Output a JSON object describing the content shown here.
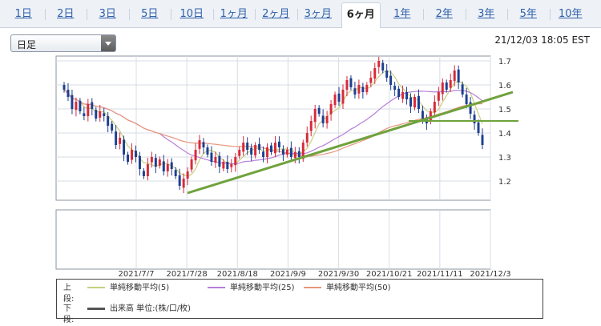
{
  "tabs": [
    {
      "label": "1日"
    },
    {
      "label": "2日"
    },
    {
      "label": "3日"
    },
    {
      "label": "5日"
    },
    {
      "label": "10日"
    },
    {
      "label": "1ヶ月"
    },
    {
      "label": "2ヶ月"
    },
    {
      "label": "3ヶ月"
    },
    {
      "label": "6ヶ月",
      "active": true
    },
    {
      "label": "1年"
    },
    {
      "label": "2年"
    },
    {
      "label": "3年"
    },
    {
      "label": "5年"
    },
    {
      "label": "10年"
    }
  ],
  "period_select": {
    "value": "日足"
  },
  "timestamp": "21/12/03 18:05 EST",
  "chart_data": {
    "type": "candlestick",
    "ylim": [
      1.12,
      1.72
    ],
    "y_ticks": [
      "1.2",
      "1.3",
      "1.4",
      "1.5",
      "1.6",
      "1.7"
    ],
    "x_tick_labels": [
      "2021/7/7",
      "2021/7/28",
      "2021/8/18",
      "2021/9/9",
      "2021/9/30",
      "2021/10/21",
      "2021/11/11",
      "2021/12/3"
    ],
    "close": [
      1.58,
      1.55,
      1.5,
      1.53,
      1.49,
      1.47,
      1.52,
      1.5,
      1.46,
      1.49,
      1.47,
      1.43,
      1.41,
      1.35,
      1.38,
      1.31,
      1.28,
      1.33,
      1.3,
      1.25,
      1.22,
      1.27,
      1.3,
      1.26,
      1.29,
      1.24,
      1.27,
      1.25,
      1.22,
      1.18,
      1.21,
      1.24,
      1.29,
      1.33,
      1.37,
      1.34,
      1.31,
      1.28,
      1.3,
      1.26,
      1.28,
      1.25,
      1.27,
      1.3,
      1.33,
      1.36,
      1.33,
      1.31,
      1.35,
      1.33,
      1.3,
      1.34,
      1.32,
      1.36,
      1.34,
      1.31,
      1.33,
      1.3,
      1.32,
      1.3,
      1.36,
      1.4,
      1.45,
      1.5,
      1.48,
      1.44,
      1.47,
      1.52,
      1.56,
      1.53,
      1.58,
      1.62,
      1.59,
      1.56,
      1.6,
      1.57,
      1.6,
      1.63,
      1.67,
      1.7,
      1.66,
      1.63,
      1.6,
      1.58,
      1.55,
      1.57,
      1.54,
      1.51,
      1.55,
      1.5,
      1.46,
      1.44,
      1.49,
      1.53,
      1.57,
      1.61,
      1.58,
      1.62,
      1.66,
      1.61,
      1.56,
      1.52,
      1.48,
      1.44,
      1.4,
      1.35
    ],
    "series": [
      {
        "name": "単純移動平均(5)",
        "color": "#c8cf7e"
      },
      {
        "name": "単純移動平均(25)",
        "color": "#b77fd8"
      },
      {
        "name": "単純移動平均(50)",
        "color": "#e8967c"
      }
    ],
    "trendlines": [
      {
        "from": [
          "2021/7/21",
          1.15
        ],
        "to": [
          "2021/12/7",
          1.57
        ]
      },
      {
        "from": [
          "2021/11/3",
          1.45
        ],
        "to": [
          "2021/12/7",
          1.45
        ]
      }
    ],
    "colors": {
      "up": "#d62a3a",
      "down": "#1d3f8f",
      "trend": "#6fa23c",
      "grid": "#d7dde5",
      "axis": "#8a94a0"
    }
  },
  "legend": {
    "upper_label": "上段:",
    "lower_label": "下段:",
    "volume_label": "出来高 単位:(株/口/枚)"
  }
}
